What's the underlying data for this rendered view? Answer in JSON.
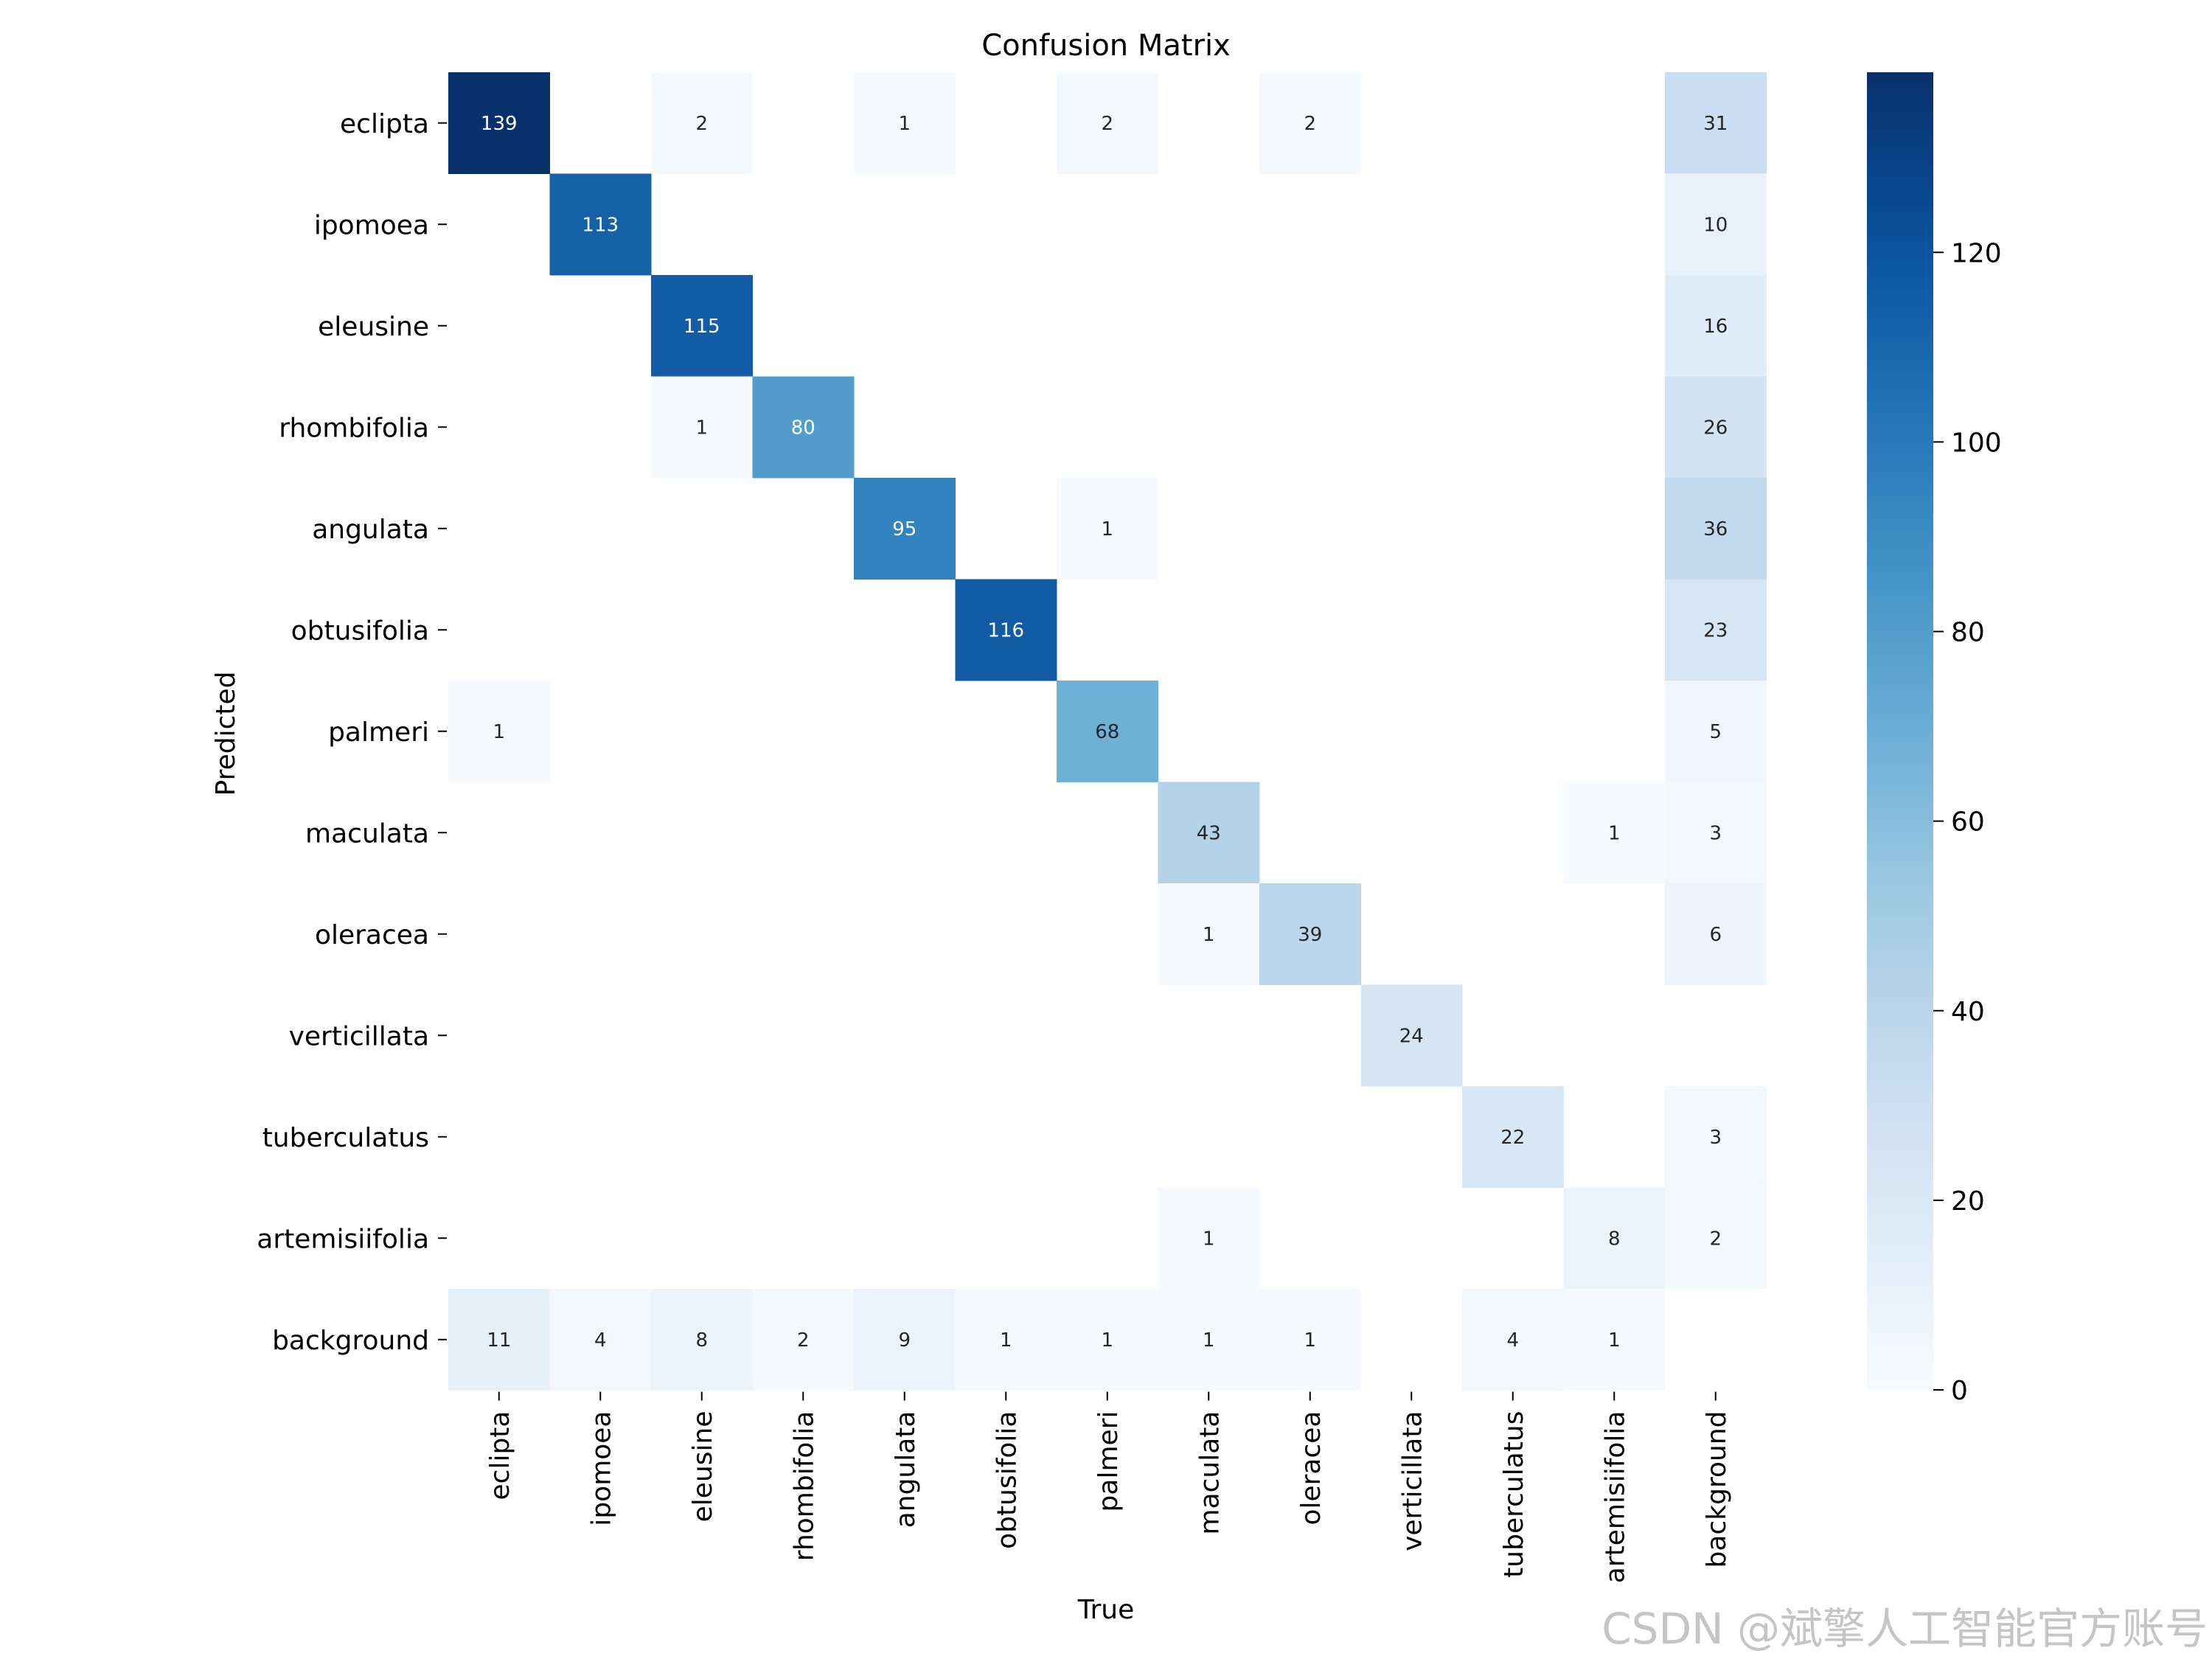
{
  "chart_data": {
    "type": "heatmap",
    "title": "Confusion Matrix",
    "xlabel": "True",
    "ylabel": "Predicted",
    "row_labels": [
      "eclipta",
      "ipomoea",
      "eleusine",
      "rhombifolia",
      "angulata",
      "obtusifolia",
      "palmeri",
      "maculata",
      "oleracea",
      "verticillata",
      "tuberculatus",
      "artemisiifolia",
      "background"
    ],
    "col_labels": [
      "eclipta",
      "ipomoea",
      "eleusine",
      "rhombifolia",
      "angulata",
      "obtusifolia",
      "palmeri",
      "maculata",
      "oleracea",
      "verticillata",
      "tuberculatus",
      "artemisiifolia",
      "background"
    ],
    "matrix": [
      [
        139,
        0,
        2,
        0,
        1,
        0,
        2,
        0,
        2,
        0,
        0,
        0,
        31
      ],
      [
        0,
        113,
        0,
        0,
        0,
        0,
        0,
        0,
        0,
        0,
        0,
        0,
        10
      ],
      [
        0,
        0,
        115,
        0,
        0,
        0,
        0,
        0,
        0,
        0,
        0,
        0,
        16
      ],
      [
        0,
        0,
        1,
        80,
        0,
        0,
        0,
        0,
        0,
        0,
        0,
        0,
        26
      ],
      [
        0,
        0,
        0,
        0,
        95,
        0,
        1,
        0,
        0,
        0,
        0,
        0,
        36
      ],
      [
        0,
        0,
        0,
        0,
        0,
        116,
        0,
        0,
        0,
        0,
        0,
        0,
        23
      ],
      [
        1,
        0,
        0,
        0,
        0,
        0,
        68,
        0,
        0,
        0,
        0,
        0,
        5
      ],
      [
        0,
        0,
        0,
        0,
        0,
        0,
        0,
        43,
        0,
        0,
        0,
        1,
        3
      ],
      [
        0,
        0,
        0,
        0,
        0,
        0,
        0,
        1,
        39,
        0,
        0,
        0,
        6
      ],
      [
        0,
        0,
        0,
        0,
        0,
        0,
        0,
        0,
        0,
        24,
        0,
        0,
        0
      ],
      [
        0,
        0,
        0,
        0,
        0,
        0,
        0,
        0,
        0,
        0,
        22,
        0,
        3
      ],
      [
        0,
        0,
        0,
        0,
        0,
        0,
        0,
        1,
        0,
        0,
        0,
        8,
        2
      ],
      [
        11,
        4,
        8,
        2,
        9,
        1,
        1,
        1,
        1,
        0,
        4,
        1,
        0
      ]
    ],
    "zero_cells_blank": true,
    "colormap": "Blues",
    "color_min": 0,
    "color_max": 139,
    "colorbar_ticks": [
      0,
      20,
      40,
      60,
      80,
      100,
      120
    ]
  },
  "watermark": "CSDN @斌擎人工智能官方账号"
}
